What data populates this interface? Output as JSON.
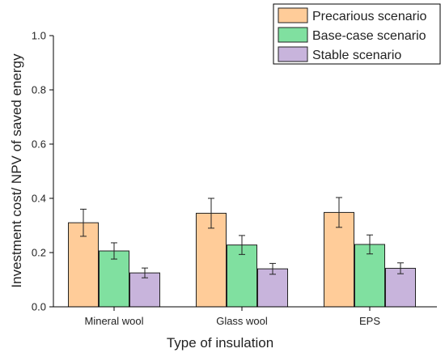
{
  "chart_data": {
    "type": "bar",
    "categories": [
      "Mineral wool",
      "Glass wool",
      "EPS"
    ],
    "series": [
      {
        "name": "Precarious scenario",
        "color": "#ffcc99",
        "values": [
          0.31,
          0.345,
          0.348
        ],
        "errors": [
          0.05,
          0.055,
          0.055
        ]
      },
      {
        "name": "Base-case scenario",
        "color": "#80e0a0",
        "values": [
          0.206,
          0.228,
          0.23
        ],
        "errors": [
          0.03,
          0.035,
          0.035
        ]
      },
      {
        "name": "Stable scenario",
        "color": "#c8b4dc",
        "values": [
          0.125,
          0.14,
          0.142
        ],
        "errors": [
          0.018,
          0.02,
          0.02
        ]
      }
    ],
    "xlabel": "Type of insulation",
    "ylabel": "Investment cost/ NPV of saved energy",
    "ylim": [
      0,
      1.0
    ],
    "yticks": [
      "0.0",
      "0.2",
      "0.4",
      "0.6",
      "0.8",
      "1.0"
    ],
    "grid": false,
    "legend_position": "top-right"
  }
}
